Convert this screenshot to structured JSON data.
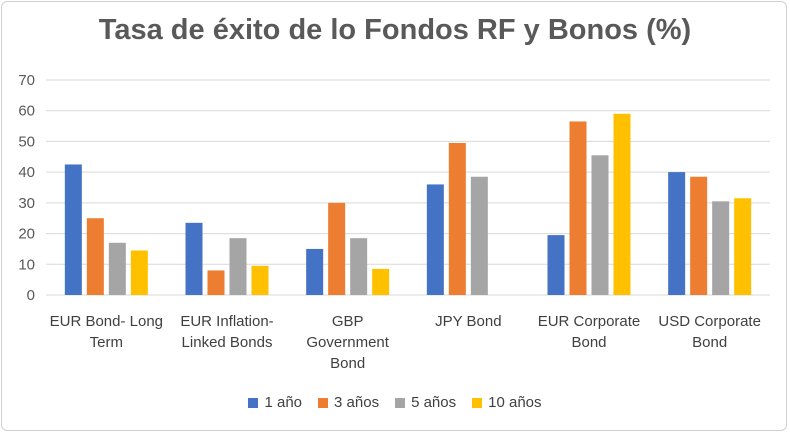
{
  "chart_data": {
    "type": "bar",
    "title": "Tasa de éxito de lo Fondos RF y Bonos (%)",
    "xlabel": "",
    "ylabel": "",
    "ylim": [
      0,
      70
    ],
    "yticks": [
      0,
      10,
      20,
      30,
      40,
      50,
      60,
      70
    ],
    "grid": true,
    "legend_position": "bottom",
    "categories": [
      [
        "EUR Bond- Long",
        "Term"
      ],
      [
        "EUR Inflation-",
        "Linked Bonds"
      ],
      [
        "GBP",
        "Government",
        "Bond"
      ],
      [
        "JPY Bond"
      ],
      [
        "EUR Corporate",
        "Bond"
      ],
      [
        "USD Corporate",
        "Bond"
      ]
    ],
    "series": [
      {
        "name": "1 año",
        "color": "#4472C4",
        "values": [
          42.5,
          23.5,
          15,
          36,
          19.5,
          40
        ]
      },
      {
        "name": "3 años",
        "color": "#ED7D31",
        "values": [
          25,
          8,
          30,
          49.5,
          56.5,
          38.5
        ]
      },
      {
        "name": "5 años",
        "color": "#A5A5A5",
        "values": [
          17,
          18.5,
          18.5,
          38.5,
          45.5,
          30.5
        ]
      },
      {
        "name": "10 años",
        "color": "#FFC000",
        "values": [
          14.5,
          9.5,
          8.5,
          null,
          59,
          31.5
        ]
      }
    ]
  }
}
